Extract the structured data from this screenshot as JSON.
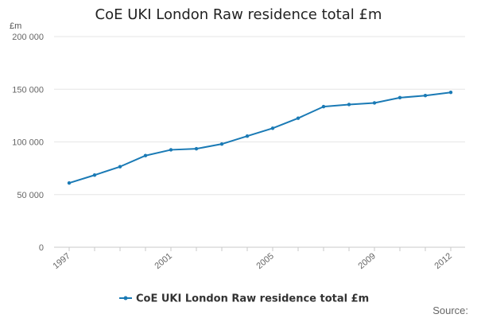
{
  "chart_data": {
    "type": "line",
    "title": "CoE UKI London Raw residence total £m",
    "ylabel": "£m",
    "xlabel": "",
    "x": [
      1997,
      1998,
      1999,
      2000,
      2001,
      2002,
      2003,
      2004,
      2005,
      2006,
      2007,
      2008,
      2009,
      2010,
      2011,
      2012
    ],
    "series": [
      {
        "name": "CoE UKI London Raw residence total £m",
        "values": [
          61000,
          68500,
          76500,
          87000,
          92500,
          93500,
          98000,
          105500,
          113000,
          122500,
          133500,
          135500,
          137000,
          142000,
          144000,
          147000
        ]
      }
    ],
    "ylim": [
      0,
      200000
    ],
    "yticks": [
      0,
      50000,
      100000,
      150000,
      200000
    ],
    "ytick_labels": [
      "0",
      "50 000",
      "100 000",
      "150 000",
      "200 000"
    ],
    "xticks": [
      1997,
      2001,
      2005,
      2009,
      2012
    ],
    "xtick_labels": [
      "1997",
      "2001",
      "2005",
      "2009",
      "2012"
    ],
    "grid": true,
    "legend": "bottom-center",
    "line_color": "#1a7ab5",
    "source_label": "Source:"
  }
}
